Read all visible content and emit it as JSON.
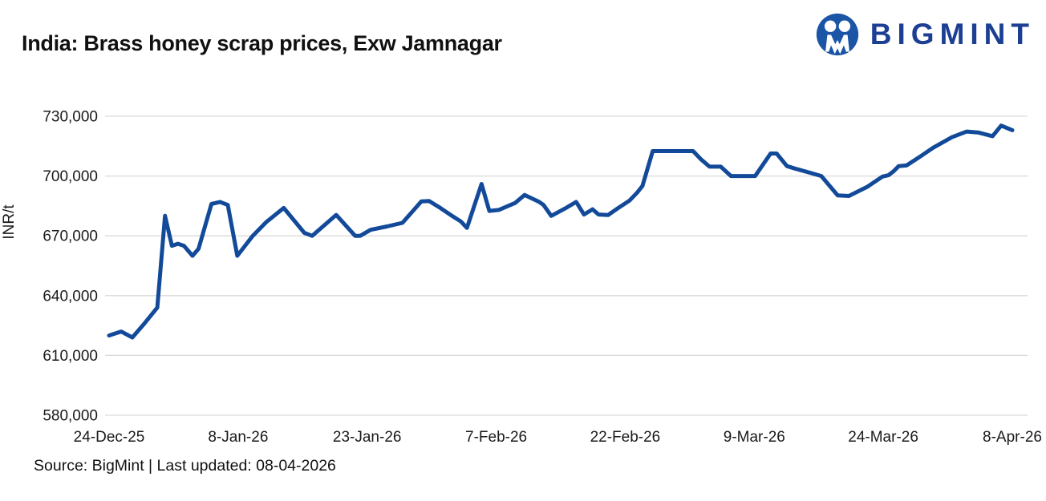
{
  "header": {
    "title": "India: Brass honey scrap prices, Exw Jamnagar",
    "brand": {
      "name": "BIGMINT",
      "logo_color": "#1a55a6",
      "text_color": "#1c3f94"
    }
  },
  "footer": {
    "source": "Source: BigMint | Last updated: 08-04-2026"
  },
  "chart_data": {
    "type": "line",
    "title": "India: Brass honey scrap prices, Exw Jamnagar",
    "xlabel": "",
    "ylabel": "INR/t",
    "ylim": [
      580000,
      730000
    ],
    "yticks": [
      580000,
      610000,
      640000,
      670000,
      700000,
      730000
    ],
    "x_span_days": 105,
    "x_description": "day offset from 24-Dec-25",
    "xticks": [
      {
        "day": 0,
        "label": "24-Dec-25"
      },
      {
        "day": 15,
        "label": "8-Jan-26"
      },
      {
        "day": 30,
        "label": "23-Jan-26"
      },
      {
        "day": 45,
        "label": "7-Feb-26"
      },
      {
        "day": 60,
        "label": "22-Feb-26"
      },
      {
        "day": 75,
        "label": "9-Mar-26"
      },
      {
        "day": 90,
        "label": "24-Mar-26"
      },
      {
        "day": 105,
        "label": "8-Apr-26"
      }
    ],
    "grid": true,
    "legend_position": "none",
    "grid_color": "#d9d9d9",
    "line_color": "#124a99",
    "series": [
      {
        "name": "Brass honey scrap price, Exw Jamnagar",
        "unit": "INR/t",
        "points": [
          [
            0,
            620000
          ],
          [
            1.4,
            622000
          ],
          [
            2.7,
            619000
          ],
          [
            4,
            625500
          ],
          [
            5.6,
            634000
          ],
          [
            6.5,
            680000
          ],
          [
            7.3,
            665000
          ],
          [
            8,
            666000
          ],
          [
            8.7,
            665000
          ],
          [
            9.7,
            660000
          ],
          [
            10.4,
            663500
          ],
          [
            11.9,
            686000
          ],
          [
            12.9,
            687000
          ],
          [
            13.8,
            685500
          ],
          [
            14.9,
            660000
          ],
          [
            16.7,
            670000
          ],
          [
            18.3,
            677000
          ],
          [
            20.3,
            684000
          ],
          [
            22.7,
            671500
          ],
          [
            23.6,
            670000
          ],
          [
            26.4,
            680500
          ],
          [
            28.6,
            670000
          ],
          [
            29.2,
            670000
          ],
          [
            30.4,
            673000
          ],
          [
            32.3,
            674700
          ],
          [
            34.1,
            676500
          ],
          [
            36.3,
            687300
          ],
          [
            37.2,
            687500
          ],
          [
            38.5,
            684000
          ],
          [
            39.7,
            680500
          ],
          [
            40.9,
            677200
          ],
          [
            41.6,
            674000
          ],
          [
            43.3,
            696000
          ],
          [
            44.2,
            682500
          ],
          [
            45.3,
            683000
          ],
          [
            47.2,
            686500
          ],
          [
            48.3,
            690500
          ],
          [
            50,
            687000
          ],
          [
            50.5,
            685500
          ],
          [
            51.4,
            680000
          ],
          [
            53,
            683700
          ],
          [
            54.3,
            687000
          ],
          [
            55.2,
            680700
          ],
          [
            56.2,
            683300
          ],
          [
            56.9,
            680700
          ],
          [
            58,
            680400
          ],
          [
            59.1,
            683700
          ],
          [
            60.5,
            687700
          ],
          [
            61.4,
            691700
          ],
          [
            62,
            695000
          ],
          [
            63.2,
            712500
          ],
          [
            67.9,
            712500
          ],
          [
            68.8,
            708400
          ],
          [
            69.8,
            704700
          ],
          [
            71.1,
            704700
          ],
          [
            72.3,
            700000
          ],
          [
            75.1,
            700000
          ],
          [
            76.9,
            711300
          ],
          [
            77.6,
            711300
          ],
          [
            78.8,
            705000
          ],
          [
            79.7,
            703800
          ],
          [
            81.6,
            701500
          ],
          [
            82.8,
            700000
          ],
          [
            84.7,
            690300
          ],
          [
            86,
            690000
          ],
          [
            88.1,
            694500
          ],
          [
            89.9,
            699700
          ],
          [
            90.6,
            700400
          ],
          [
            91.2,
            702400
          ],
          [
            91.8,
            705000
          ],
          [
            92.7,
            705300
          ],
          [
            94.3,
            709800
          ],
          [
            95.8,
            714200
          ],
          [
            98,
            719500
          ],
          [
            99.7,
            722300
          ],
          [
            101.1,
            721800
          ],
          [
            102.7,
            720000
          ],
          [
            103.7,
            725300
          ],
          [
            105,
            723000
          ]
        ]
      }
    ]
  }
}
